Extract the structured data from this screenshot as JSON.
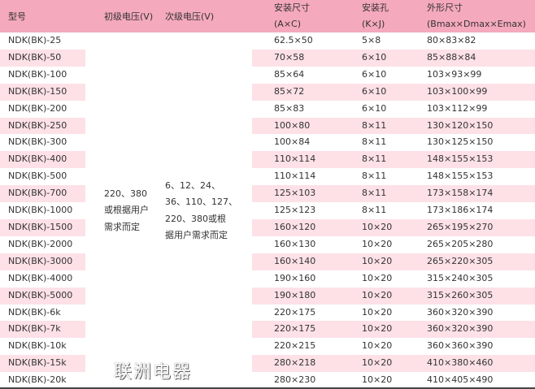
{
  "header": {
    "model": "型号",
    "primary": "初级电压(V)",
    "secondary": "次级电压(V)",
    "mount_size": [
      "安装尺寸",
      "(A×C)"
    ],
    "mount_hole": [
      "安装孔",
      "(K×J)"
    ],
    "outline": [
      "外形尺寸",
      "(Bmax×Dmax×Emax)"
    ]
  },
  "primary_voltage": [
    "220、380",
    "或根据用户",
    "需求而定"
  ],
  "secondary_voltage": [
    "6、12、24、",
    "36、110、127、",
    "220、380或根",
    "据用户需求而定"
  ],
  "rows": [
    {
      "model": "NDK(BK)-25",
      "ac": "62.5×50",
      "kj": "5×8",
      "dims": "80×83×82"
    },
    {
      "model": "NDK(BK)-50",
      "ac": "70×58",
      "kj": "6×10",
      "dims": "85×88×84"
    },
    {
      "model": "NDK(BK)-100",
      "ac": "85×64",
      "kj": "6×10",
      "dims": "103×93×99"
    },
    {
      "model": "NDK(BK)-150",
      "ac": "85×72",
      "kj": "6×10",
      "dims": "103×100×99"
    },
    {
      "model": "NDK(BK)-200",
      "ac": "85×83",
      "kj": "6×10",
      "dims": "103×112×99"
    },
    {
      "model": "NDK(BK)-250",
      "ac": "100×80",
      "kj": "8×11",
      "dims": "130×120×150"
    },
    {
      "model": "NDK(BK)-300",
      "ac": "100×84",
      "kj": "8×11",
      "dims": "130×125×150"
    },
    {
      "model": "NDK(BK)-400",
      "ac": "110×114",
      "kj": "8×11",
      "dims": "148×155×153"
    },
    {
      "model": "NDK(BK)-500",
      "ac": "110×114",
      "kj": "8×11",
      "dims": "148×155×153"
    },
    {
      "model": "NDK(BK)-700",
      "ac": "125×103",
      "kj": "8×11",
      "dims": "173×158×174"
    },
    {
      "model": "NDK(BK)-1000",
      "ac": "125×123",
      "kj": "8×11",
      "dims": "173×186×174"
    },
    {
      "model": "NDK(BK)-1500",
      "ac": "160×120",
      "kj": "10×20",
      "dims": "265×195×270"
    },
    {
      "model": "NDK(BK)-2000",
      "ac": "160×130",
      "kj": "10×20",
      "dims": "265×205×280"
    },
    {
      "model": "NDK(BK)-3000",
      "ac": "160×140",
      "kj": "10×20",
      "dims": "265×220×305"
    },
    {
      "model": "NDK(BK)-4000",
      "ac": "190×160",
      "kj": "10×20",
      "dims": "315×240×305"
    },
    {
      "model": "NDK(BK)-5000",
      "ac": "190×180",
      "kj": "10×20",
      "dims": "315×260×305"
    },
    {
      "model": "NDK(BK)-6k",
      "ac": "220×175",
      "kj": "10×20",
      "dims": "360×320×390"
    },
    {
      "model": "NDK(BK)-7k",
      "ac": "220×175",
      "kj": "10×20",
      "dims": "360×320×390"
    },
    {
      "model": "NDK(BK)-10k",
      "ac": "220×215",
      "kj": "10×20",
      "dims": "360×360×390"
    },
    {
      "model": "NDK(BK)-15k",
      "ac": "280×218",
      "kj": "10×20",
      "dims": "410×380×460"
    },
    {
      "model": "NDK(BK)-20k",
      "ac": "280×230",
      "kj": "10×20",
      "dims": "410×405×490"
    }
  ],
  "watermark": "联洲电器",
  "colors": {
    "header_bg": "#f5a9bd",
    "stripe_bg": "#fde1e7"
  }
}
